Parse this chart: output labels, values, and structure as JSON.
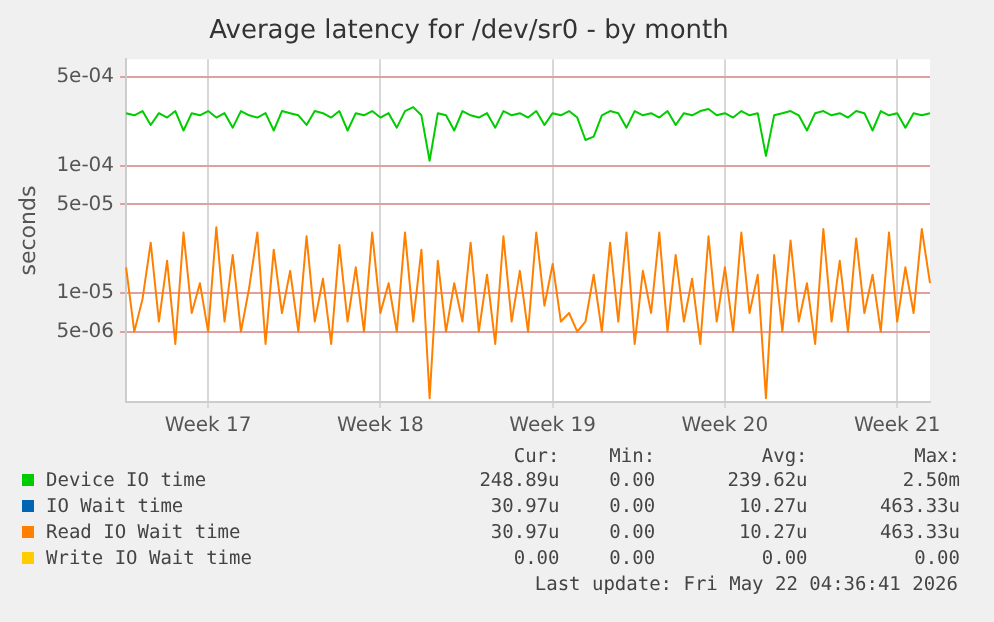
{
  "chart_data": {
    "type": "line",
    "title": "Average latency for /dev/sr0 - by month",
    "ylabel": "seconds",
    "log": "y",
    "grid": true,
    "legend": "bottom",
    "marker": "none",
    "line_style": "solid",
    "categories": [
      null,
      null,
      null,
      null,
      null,
      null,
      null,
      null,
      null,
      null,
      "Week 17",
      null,
      null,
      null,
      null,
      null,
      null,
      null,
      null,
      null,
      null,
      null,
      null,
      null,
      null,
      null,
      null,
      null,
      null,
      null,
      null,
      "Week 18",
      null,
      null,
      null,
      null,
      null,
      null,
      null,
      null,
      null,
      null,
      null,
      null,
      null,
      null,
      null,
      null,
      null,
      null,
      null,
      null,
      "Week 19",
      null,
      null,
      null,
      null,
      null,
      null,
      null,
      null,
      null,
      null,
      null,
      null,
      null,
      null,
      null,
      null,
      null,
      null,
      null,
      null,
      "Week 20",
      null,
      null,
      null,
      null,
      null,
      null,
      null,
      null,
      null,
      null,
      null,
      null,
      null,
      null,
      null,
      null,
      null,
      null,
      null,
      null,
      "Week 21",
      null,
      null,
      null,
      null
    ],
    "ylim": [
      1.4e-06,
      0.00069
    ],
    "yticks": [
      {
        "value": 5e-06,
        "label": "5e-06"
      },
      {
        "value": 1e-05,
        "label": "1e-05"
      },
      {
        "value": 5e-05,
        "label": "5e-05"
      },
      {
        "value": 0.0001,
        "label": "1e-04"
      },
      {
        "value": 0.0005,
        "label": "5e-04"
      }
    ],
    "series": [
      {
        "name": "Device IO time",
        "color": "#00cc00",
        "values": [
          0.00026,
          0.00025,
          0.00027,
          0.00021,
          0.00026,
          0.00024,
          0.00027,
          0.00019,
          0.00026,
          0.00025,
          0.00027,
          0.00024,
          0.00026,
          0.0002,
          0.00027,
          0.00025,
          0.00024,
          0.00026,
          0.00019,
          0.00027,
          0.00026,
          0.00025,
          0.00021,
          0.00027,
          0.00026,
          0.00024,
          0.00027,
          0.00019,
          0.00026,
          0.00025,
          0.00027,
          0.00024,
          0.00026,
          0.0002,
          0.00027,
          0.00029,
          0.00025,
          0.00011,
          0.00026,
          0.00025,
          0.00019,
          0.00027,
          0.00025,
          0.00024,
          0.00026,
          0.0002,
          0.00027,
          0.00025,
          0.00026,
          0.00024,
          0.00027,
          0.00021,
          0.00026,
          0.00025,
          0.00027,
          0.00024,
          0.00016,
          0.00017,
          0.00025,
          0.00027,
          0.00026,
          0.0002,
          0.00027,
          0.00025,
          0.00026,
          0.00024,
          0.00027,
          0.00021,
          0.00026,
          0.00025,
          0.00027,
          0.00028,
          0.00025,
          0.00026,
          0.00024,
          0.00027,
          0.00025,
          0.00026,
          0.00012,
          0.00025,
          0.00026,
          0.00027,
          0.00025,
          0.00019,
          0.00026,
          0.00027,
          0.00025,
          0.00026,
          0.00024,
          0.00027,
          0.00026,
          0.00019,
          0.00027,
          0.00025,
          0.00026,
          0.0002,
          0.00026,
          0.00025,
          0.00026
        ]
      },
      {
        "name": "IO Wait time",
        "color": "#0066b3",
        "values": [
          null,
          null,
          null,
          null,
          null,
          null,
          null,
          null,
          null,
          null,
          null,
          null,
          null,
          null,
          null,
          null,
          null,
          null,
          null,
          null,
          null,
          null,
          null,
          null,
          null,
          null,
          null,
          null,
          null,
          null,
          null,
          null,
          null,
          null,
          null,
          null,
          null,
          null,
          null,
          null,
          null,
          null,
          null,
          null,
          null,
          null,
          null,
          null,
          null,
          null,
          null,
          null,
          null,
          null,
          null,
          null,
          null,
          null,
          null,
          null,
          null,
          null,
          null,
          null,
          null,
          null,
          null,
          null,
          null,
          null,
          null,
          null,
          null,
          null,
          null,
          null,
          null,
          null,
          null,
          null,
          null,
          null,
          null,
          null,
          null,
          null,
          null,
          null,
          null,
          null,
          null,
          null,
          null,
          null,
          null,
          null,
          null,
          null,
          null
        ]
      },
      {
        "name": "Read IO Wait time",
        "color": "#ff8000",
        "values": [
          1.6e-05,
          5e-06,
          9e-06,
          2.5e-05,
          6e-06,
          1.8e-05,
          4e-06,
          3e-05,
          7e-06,
          1.2e-05,
          5e-06,
          3.3e-05,
          6e-06,
          2e-05,
          5e-06,
          1.1e-05,
          3e-05,
          4e-06,
          2.2e-05,
          7e-06,
          1.5e-05,
          5e-06,
          2.8e-05,
          6e-06,
          1.3e-05,
          4e-06,
          2.4e-05,
          6e-06,
          1.6e-05,
          5e-06,
          3e-05,
          7e-06,
          1.2e-05,
          5e-06,
          3e-05,
          6e-06,
          2.2e-05,
          1.5e-06,
          1.8e-05,
          5e-06,
          1.2e-05,
          6e-06,
          2.5e-05,
          5e-06,
          1.4e-05,
          4e-06,
          2.8e-05,
          6e-06,
          1.5e-05,
          5e-06,
          3e-05,
          8e-06,
          1.7e-05,
          6e-06,
          7e-06,
          5e-06,
          6e-06,
          1.4e-05,
          5e-06,
          2.5e-05,
          6e-06,
          3e-05,
          4e-06,
          1.5e-05,
          7e-06,
          3e-05,
          5e-06,
          2e-05,
          6e-06,
          1.3e-05,
          4e-06,
          2.8e-05,
          6e-06,
          1.6e-05,
          5e-06,
          3e-05,
          7e-06,
          1.4e-05,
          1.5e-06,
          2e-05,
          5e-06,
          2.6e-05,
          6e-06,
          1.2e-05,
          4e-06,
          3.2e-05,
          6e-06,
          1.8e-05,
          5e-06,
          2.7e-05,
          7e-06,
          1.4e-05,
          5e-06,
          3e-05,
          6e-06,
          1.6e-05,
          7e-06,
          3.2e-05,
          1.2e-05
        ]
      },
      {
        "name": "Write IO Wait time",
        "color": "#ffcc00",
        "values": [
          null,
          null,
          null,
          null,
          null,
          null,
          null,
          null,
          null,
          null,
          null,
          null,
          null,
          null,
          null,
          null,
          null,
          null,
          null,
          null,
          null,
          null,
          null,
          null,
          null,
          null,
          null,
          null,
          null,
          null,
          null,
          null,
          null,
          null,
          null,
          null,
          null,
          null,
          null,
          null,
          null,
          null,
          null,
          null,
          null,
          null,
          null,
          null,
          null,
          null,
          null,
          null,
          null,
          null,
          null,
          null,
          null,
          null,
          null,
          null,
          null,
          null,
          null,
          null,
          null,
          null,
          null,
          null,
          null,
          null,
          null,
          null,
          null,
          null,
          null,
          null,
          null,
          null,
          null,
          null,
          null,
          null,
          null,
          null,
          null,
          null,
          null,
          null,
          null,
          null,
          null,
          null,
          null,
          null,
          null,
          null,
          null,
          null,
          null
        ]
      }
    ],
    "annotations": [
      "Cur:",
      "Min:",
      "Avg:",
      "Max:",
      "248.89u",
      "0.00",
      "239.62u",
      "2.50m",
      "30.97u",
      "0.00",
      "10.27u",
      "463.33u",
      "30.97u",
      "0.00",
      "10.27u",
      "463.33u",
      "0.00",
      "0.00",
      "0.00",
      "0.00",
      "Last update: Fri May 22 04:36:41 2026"
    ]
  }
}
